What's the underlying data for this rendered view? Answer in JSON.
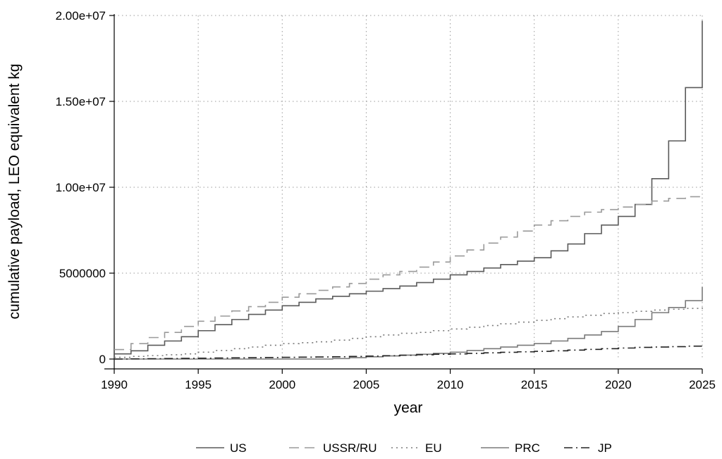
{
  "chart_data": {
    "type": "line",
    "xlabel": "year",
    "ylabel": "cumulative payload, LEO equivalent kg",
    "xlim": [
      1990,
      2025
    ],
    "ylim": [
      0,
      20000000
    ],
    "grid": true,
    "legend_position": "bottom",
    "x_ticks": [
      1990,
      1995,
      2000,
      2005,
      2010,
      2015,
      2020,
      2025
    ],
    "x_tick_labels": [
      "1990",
      "1995",
      "2000",
      "2005",
      "2010",
      "2015",
      "2020",
      "2025"
    ],
    "y_ticks": [
      0,
      5000000,
      10000000,
      15000000,
      20000000
    ],
    "y_tick_labels": [
      "0",
      "5000000",
      "1.00e+07",
      "1.50e+07",
      "2.00e+07"
    ],
    "years": [
      1990,
      1991,
      1992,
      1993,
      1994,
      1995,
      1996,
      1997,
      1998,
      1999,
      2000,
      2001,
      2002,
      2003,
      2004,
      2005,
      2006,
      2007,
      2008,
      2009,
      2010,
      2011,
      2012,
      2013,
      2014,
      2015,
      2016,
      2017,
      2018,
      2019,
      2020,
      2021,
      2022,
      2023,
      2024,
      2025
    ],
    "series": [
      {
        "name": "US",
        "color": "#5a5a5a",
        "dash": "solid",
        "values": [
          300000,
          480000,
          800000,
          1050000,
          1300000,
          1650000,
          2000000,
          2300000,
          2600000,
          2850000,
          3100000,
          3300000,
          3500000,
          3650000,
          3800000,
          3950000,
          4100000,
          4250000,
          4450000,
          4650000,
          4900000,
          5100000,
          5300000,
          5500000,
          5700000,
          5900000,
          6300000,
          6700000,
          7300000,
          7800000,
          8300000,
          9000000,
          10500000,
          12700000,
          15800000,
          19700000
        ]
      },
      {
        "name": "USSR/RU",
        "color": "#9a9a9a",
        "dash": "long-dash",
        "values": [
          550000,
          900000,
          1250000,
          1550000,
          1900000,
          2200000,
          2500000,
          2800000,
          3050000,
          3300000,
          3600000,
          3800000,
          4000000,
          4200000,
          4400000,
          4650000,
          4900000,
          5100000,
          5350000,
          5650000,
          6000000,
          6350000,
          6750000,
          7100000,
          7450000,
          7800000,
          8050000,
          8300000,
          8550000,
          8700000,
          8850000,
          9000000,
          9200000,
          9350000,
          9450000,
          9550000
        ]
      },
      {
        "name": "EU",
        "color": "#7a7a7a",
        "dash": "dotted",
        "values": [
          100000,
          150000,
          200000,
          250000,
          300000,
          400000,
          500000,
          600000,
          700000,
          800000,
          900000,
          950000,
          1000000,
          1100000,
          1200000,
          1300000,
          1400000,
          1500000,
          1550000,
          1650000,
          1750000,
          1850000,
          1950000,
          2050000,
          2150000,
          2250000,
          2350000,
          2450000,
          2550000,
          2650000,
          2700000,
          2780000,
          2850000,
          2900000,
          2950000,
          3000000
        ]
      },
      {
        "name": "PRC",
        "color": "#7a7a7a",
        "dash": "solid",
        "values": [
          0,
          0,
          0,
          0,
          0,
          0,
          0,
          0,
          0,
          0,
          0,
          0,
          0,
          30000,
          80000,
          130000,
          180000,
          230000,
          280000,
          330000,
          400000,
          500000,
          600000,
          700000,
          800000,
          900000,
          1050000,
          1200000,
          1400000,
          1600000,
          1900000,
          2300000,
          2700000,
          3000000,
          3400000,
          4200000
        ]
      },
      {
        "name": "JP",
        "color": "#222222",
        "dash": "dash-dot",
        "values": [
          0,
          10000,
          20000,
          30000,
          40000,
          50000,
          60000,
          70000,
          80000,
          90000,
          100000,
          110000,
          120000,
          130000,
          150000,
          170000,
          190000,
          220000,
          250000,
          280000,
          300000,
          330000,
          360000,
          390000,
          420000,
          450000,
          480000,
          520000,
          560000,
          600000,
          640000,
          680000,
          700000,
          720000,
          750000,
          800000
        ]
      }
    ]
  }
}
